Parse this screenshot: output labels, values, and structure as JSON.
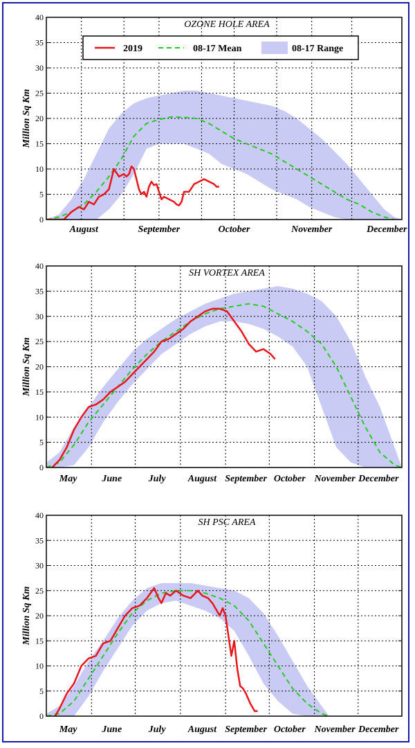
{
  "colors": {
    "series_2019": "#e8161a",
    "mean": "#22cc22",
    "range_fill": "#c9cbf5",
    "border": "#1a1aa8"
  },
  "legend": {
    "items": [
      "2019",
      "08-17 Mean",
      "08-17 Range"
    ]
  },
  "chart_data": [
    {
      "type": "line",
      "title": "OZONE HOLE AREA",
      "ylabel": "Million Sq Km",
      "ylim": [
        0,
        40
      ],
      "yticks": [
        0,
        5,
        10,
        15,
        20,
        25,
        30,
        35,
        40
      ],
      "xlim": [
        213,
        355
      ],
      "x_unit": "day of year",
      "month_labels": [
        {
          "label": "August",
          "x": 228
        },
        {
          "label": "September",
          "x": 258
        },
        {
          "label": "October",
          "x": 288
        },
        {
          "label": "November",
          "x": 319
        },
        {
          "label": "December",
          "x": 349
        }
      ],
      "vgrid": [
        227,
        244,
        258,
        275,
        288,
        305,
        319,
        335
      ],
      "legend_position": "top",
      "series": [
        {
          "name": "2019",
          "style": "solid",
          "x": [
            213,
            220,
            223,
            226,
            228,
            230,
            232,
            234,
            236,
            238,
            240,
            242,
            244,
            245,
            246,
            247,
            248,
            249,
            250,
            251,
            252,
            253,
            254,
            255,
            256,
            257,
            258,
            259,
            260,
            262,
            264,
            265,
            266,
            267,
            268,
            270,
            272,
            274,
            276,
            278,
            280,
            281,
            282
          ],
          "values": [
            0,
            0,
            1.5,
            2.5,
            2.0,
            3.5,
            3.0,
            4.5,
            5.0,
            6.0,
            10.0,
            8.5,
            9.0,
            8.5,
            9.0,
            10.5,
            10.0,
            8.0,
            6.0,
            5.0,
            5.5,
            4.5,
            6.5,
            7.5,
            6.8,
            7.0,
            5.5,
            4.0,
            4.5,
            4.0,
            3.5,
            3.0,
            2.8,
            3.5,
            5.5,
            5.5,
            7.0,
            7.5,
            8.0,
            7.5,
            7.0,
            6.5,
            6.5
          ]
        },
        {
          "name": "08-17 Mean",
          "style": "dashed",
          "x": [
            213,
            218,
            223,
            228,
            233,
            238,
            243,
            248,
            253,
            258,
            263,
            268,
            273,
            278,
            283,
            288,
            293,
            298,
            303,
            308,
            313,
            318,
            323,
            328,
            333,
            338,
            343,
            348,
            352
          ],
          "values": [
            0,
            0.5,
            1.5,
            3.0,
            5.5,
            8.5,
            12.0,
            16.5,
            19.0,
            19.8,
            20.3,
            20.2,
            20.0,
            19.0,
            17.5,
            16.0,
            15.0,
            14.0,
            13.0,
            11.5,
            10.0,
            8.5,
            7.0,
            5.5,
            4.0,
            3.0,
            1.5,
            0.5,
            0
          ]
        },
        {
          "name": "08-17 Range",
          "style": "band",
          "x": [
            213,
            218,
            223,
            228,
            233,
            238,
            243,
            248,
            253,
            258,
            263,
            268,
            273,
            278,
            283,
            288,
            293,
            298,
            303,
            308,
            313,
            318,
            323,
            328,
            333,
            338,
            343,
            348,
            352,
            355
          ],
          "upper": [
            0,
            1,
            4,
            8,
            13,
            18,
            21,
            23,
            24,
            24.5,
            25,
            25.5,
            25.5,
            25,
            24.5,
            24,
            23.5,
            23,
            22.5,
            21.5,
            20,
            18,
            16,
            13.5,
            11,
            8,
            5,
            2,
            0.5,
            0
          ],
          "lower": [
            0,
            0,
            0,
            0,
            0,
            2,
            5,
            9,
            14,
            15,
            15,
            15,
            14,
            13,
            11,
            10,
            9,
            7.5,
            6,
            5,
            4,
            2.5,
            1.5,
            0.5,
            0,
            0,
            0,
            0,
            0,
            0
          ]
        }
      ]
    },
    {
      "type": "line",
      "title": "SH VORTEX AREA",
      "ylabel": "Million Sq Km",
      "ylim": [
        0,
        40
      ],
      "yticks": [
        0,
        5,
        10,
        15,
        20,
        25,
        30,
        35,
        40
      ],
      "xlim": [
        121,
        365
      ],
      "x_unit": "day of year",
      "month_labels": [
        {
          "label": "May",
          "x": 136
        },
        {
          "label": "June",
          "x": 166
        },
        {
          "label": "July",
          "x": 197
        },
        {
          "label": "August",
          "x": 228
        },
        {
          "label": "September",
          "x": 258
        },
        {
          "label": "October",
          "x": 288
        },
        {
          "label": "November",
          "x": 319
        },
        {
          "label": "December",
          "x": 349
        }
      ],
      "vgrid": [
        121,
        152,
        182,
        213,
        244,
        274,
        305,
        335,
        365
      ],
      "series": [
        {
          "name": "2019",
          "style": "solid",
          "x": [
            125,
            130,
            135,
            140,
            145,
            150,
            155,
            160,
            165,
            170,
            175,
            180,
            185,
            190,
            195,
            200,
            205,
            210,
            215,
            220,
            225,
            230,
            235,
            240,
            245,
            250,
            255,
            260,
            265,
            270,
            275,
            278
          ],
          "values": [
            0,
            1.5,
            4.0,
            7.5,
            10.0,
            12.0,
            12.5,
            13.5,
            15.0,
            16.0,
            17.0,
            18.5,
            20.0,
            21.5,
            23.0,
            25.0,
            25.5,
            26.5,
            27.5,
            29.0,
            30.0,
            31.0,
            31.5,
            31.5,
            31.0,
            29.0,
            27.0,
            24.5,
            23.0,
            23.5,
            22.5,
            21.5
          ]
        },
        {
          "name": "08-17 Mean",
          "style": "dashed",
          "x": [
            121,
            130,
            140,
            150,
            160,
            170,
            180,
            190,
            200,
            210,
            220,
            230,
            240,
            250,
            260,
            270,
            280,
            290,
            300,
            310,
            320,
            330,
            340,
            350,
            360,
            365
          ],
          "values": [
            0,
            1.0,
            4.5,
            9.0,
            12.5,
            16.0,
            19.5,
            22.5,
            25.0,
            27.0,
            29.0,
            30.5,
            31.5,
            32.0,
            32.5,
            32.0,
            30.5,
            29.0,
            27.0,
            24.5,
            20.0,
            14.0,
            8.0,
            3.0,
            0.5,
            0
          ]
        },
        {
          "name": "08-17 Range",
          "style": "band",
          "x": [
            121,
            130,
            140,
            150,
            160,
            170,
            180,
            190,
            200,
            210,
            220,
            230,
            240,
            250,
            260,
            270,
            280,
            290,
            300,
            310,
            320,
            330,
            340,
            350,
            360,
            365
          ],
          "upper": [
            1,
            3,
            8,
            12,
            16,
            19.5,
            23,
            25.5,
            27.5,
            29.5,
            31,
            32.5,
            33.5,
            34.5,
            35,
            35.5,
            36,
            35.5,
            34.5,
            33,
            30,
            25,
            18,
            12,
            4,
            0
          ],
          "lower": [
            0,
            0,
            0.5,
            4,
            9,
            13,
            16.5,
            19.5,
            22.5,
            24.5,
            26.5,
            28,
            29,
            29,
            28.5,
            27.5,
            26,
            24,
            20,
            12,
            4,
            1,
            0,
            0,
            0,
            0
          ]
        }
      ]
    },
    {
      "type": "line",
      "title": "SH PSC AREA",
      "ylabel": "Million Sq Km",
      "ylim": [
        0,
        40
      ],
      "yticks": [
        0,
        5,
        10,
        15,
        20,
        25,
        30,
        35,
        40
      ],
      "xlim": [
        121,
        365
      ],
      "x_unit": "day of year",
      "month_labels": [
        {
          "label": "May",
          "x": 136
        },
        {
          "label": "June",
          "x": 166
        },
        {
          "label": "July",
          "x": 197
        },
        {
          "label": "August",
          "x": 228
        },
        {
          "label": "September",
          "x": 258
        },
        {
          "label": "October",
          "x": 288
        },
        {
          "label": "November",
          "x": 319
        },
        {
          "label": "December",
          "x": 349
        }
      ],
      "vgrid": [
        121,
        152,
        182,
        213,
        244,
        274,
        305,
        335,
        365
      ],
      "series": [
        {
          "name": "2019",
          "style": "solid",
          "x": [
            127,
            130,
            135,
            140,
            145,
            150,
            155,
            160,
            165,
            170,
            175,
            180,
            185,
            190,
            195,
            198,
            200,
            203,
            206,
            210,
            215,
            220,
            225,
            228,
            232,
            235,
            238,
            240,
            242,
            244,
            246,
            248,
            250,
            252,
            254,
            256,
            258,
            261,
            264,
            266
          ],
          "values": [
            0,
            1.5,
            4.5,
            6.5,
            10.0,
            11.5,
            12.0,
            14.5,
            15.0,
            17.5,
            20.0,
            21.5,
            22.0,
            23.5,
            25.5,
            23.5,
            22.5,
            24.5,
            24.0,
            25.0,
            24.0,
            23.5,
            25.0,
            24.0,
            23.5,
            22.5,
            21.0,
            20.0,
            21.5,
            20.0,
            16.0,
            12.0,
            15.0,
            9.5,
            6.0,
            5.5,
            4.5,
            2.5,
            1.0,
            1.0
          ]
        },
        {
          "name": "08-17 Mean",
          "style": "dashed",
          "x": [
            121,
            130,
            140,
            150,
            160,
            170,
            180,
            190,
            200,
            210,
            220,
            230,
            240,
            250,
            260,
            270,
            280,
            290,
            300,
            310,
            315
          ],
          "values": [
            0,
            0.5,
            3.0,
            7.5,
            12.0,
            16.5,
            20.5,
            23.0,
            24.5,
            25.0,
            25.0,
            24.5,
            23.5,
            22.0,
            19.0,
            14.5,
            10.0,
            5.5,
            2.5,
            0.5,
            0
          ]
        },
        {
          "name": "08-17 Range",
          "style": "band",
          "x": [
            121,
            130,
            140,
            150,
            160,
            170,
            180,
            190,
            200,
            210,
            220,
            230,
            240,
            250,
            260,
            270,
            280,
            290,
            300,
            310,
            315
          ],
          "upper": [
            0.5,
            2,
            6,
            11,
            15,
            19.5,
            23,
            25.5,
            26.5,
            26.5,
            26.5,
            26,
            25.5,
            25,
            23.5,
            20.5,
            16,
            11,
            6,
            2,
            0
          ],
          "lower": [
            0,
            0,
            0,
            4,
            9,
            13.5,
            18,
            21,
            22.5,
            23,
            22,
            21,
            19.5,
            17,
            12,
            6.5,
            3,
            0.5,
            0,
            0,
            0
          ]
        }
      ]
    }
  ]
}
